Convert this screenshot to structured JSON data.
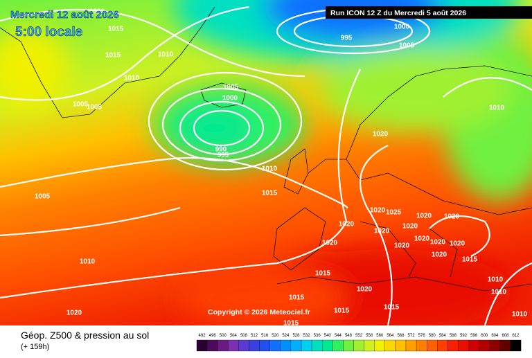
{
  "header": {
    "date": "Mercredi 12 août 2026",
    "time": "5:00 locale",
    "run": "Run ICON 12 Z du Mercredi 5 août 2026"
  },
  "copyright": "Copyright © 2026 Meteociel.fr",
  "footer": {
    "title": "Géop. Z500 & pression au sol",
    "lead": "(+ 159h)"
  },
  "isobar_labels": [
    1020,
    1015,
    1015,
    1010,
    1010,
    1005,
    1005,
    1005,
    1000,
    990,
    995,
    1000,
    995,
    1005,
    1010,
    1020,
    1010,
    1015,
    1005,
    1010,
    1020,
    1020,
    1020,
    1020,
    1025,
    1020,
    1020,
    1020,
    1020,
    1020,
    1020,
    1020,
    1020,
    1020,
    1015,
    1015,
    1020,
    1015,
    1015,
    1015,
    1015,
    1010,
    1010,
    1010
  ],
  "legend": {
    "labels": [
      492,
      496,
      500,
      504,
      508,
      512,
      516,
      520,
      524,
      528,
      532,
      536,
      540,
      544,
      548,
      552,
      556,
      560,
      564,
      568,
      572,
      576,
      580,
      584,
      588,
      592,
      596,
      600,
      604,
      608,
      612
    ],
    "colors": [
      "#2a0030",
      "#4b0a5a",
      "#6a1a85",
      "#7a30b0",
      "#5a3ad0",
      "#3a40e0",
      "#2050f0",
      "#1070ff",
      "#0090ff",
      "#00b0ff",
      "#00d0f0",
      "#00e0c0",
      "#00e890",
      "#30f060",
      "#70f040",
      "#a0f030",
      "#d0f020",
      "#f0f000",
      "#f8d800",
      "#ffc000",
      "#ffa000",
      "#ff8000",
      "#ff6000",
      "#ff4000",
      "#f82000",
      "#e81000",
      "#d00000",
      "#b00000",
      "#900000",
      "#600000",
      "#000000"
    ]
  }
}
